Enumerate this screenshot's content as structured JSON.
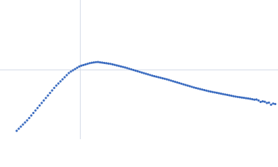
{
  "chart_data": {
    "type": "scatter",
    "x": [
      24,
      27,
      30,
      33,
      36,
      39,
      42,
      45,
      48,
      51,
      54,
      57,
      60,
      63,
      66,
      69,
      72,
      75,
      78,
      81,
      84,
      87,
      90,
      93,
      96,
      99,
      102,
      105,
      108,
      111,
      114,
      117,
      120,
      123,
      126,
      129,
      132,
      135,
      138,
      141,
      144,
      147,
      150,
      153,
      156,
      159,
      162,
      165,
      168,
      171,
      174,
      177,
      180,
      183,
      186,
      189,
      192,
      195,
      198,
      201,
      204,
      207,
      210,
      213,
      216,
      219,
      222,
      225,
      228,
      231,
      234,
      237,
      240,
      243,
      246,
      249,
      252,
      255,
      258,
      261,
      264,
      267,
      270,
      273,
      276,
      279,
      282,
      285,
      288,
      291,
      294,
      297,
      300,
      303,
      306,
      309,
      312,
      315,
      318,
      321,
      324,
      327,
      330,
      333,
      336,
      339,
      342,
      345,
      348,
      351,
      354,
      357,
      360,
      363,
      366,
      369,
      372,
      375,
      378,
      381,
      384,
      387,
      390,
      393,
      396
    ],
    "values": [
      12,
      15,
      18,
      21,
      24,
      27,
      30.4,
      34,
      37.6,
      41.2,
      44.8,
      48.4,
      52,
      55.6,
      59.2,
      62.8,
      66.4,
      70,
      73.6,
      77,
      80,
      83,
      86,
      89,
      92,
      95,
      97.2,
      99,
      100.8,
      102.6,
      104.4,
      105.6,
      106.5,
      107.4,
      108.3,
      109.2,
      109.8,
      110.3,
      110.7,
      110.9,
      110.4,
      110,
      109.5,
      109.1,
      108.6,
      108.2,
      107.5,
      106.8,
      106,
      105.3,
      104.5,
      103.8,
      103,
      102.1,
      101.2,
      100.3,
      99.4,
      98.5,
      97.6,
      96.7,
      95.8,
      94.9,
      94,
      93.1,
      92.2,
      91.3,
      90.5,
      89.8,
      89,
      88.3,
      87.5,
      86.8,
      86,
      85.1,
      84.2,
      83.3,
      82.4,
      81.5,
      80.6,
      79.7,
      78.8,
      77.9,
      77,
      76.1,
      75.2,
      74.3,
      73.5,
      72.8,
      72,
      71.3,
      70.5,
      69.8,
      69,
      68.4,
      67.8,
      67.2,
      66.6,
      66,
      65.4,
      64.8,
      64.2,
      63.6,
      63,
      62.4,
      61.8,
      61.2,
      60.7,
      60.3,
      59.8,
      59.4,
      58.9,
      58.5,
      58,
      57.4,
      56.8,
      57,
      55.6,
      53.5,
      54.4,
      53.8,
      52,
      52.5,
      49.5,
      51.2,
      50.5
    ],
    "color": "#3b6cc0",
    "xlim": [
      0,
      400
    ],
    "ylim": [
      0,
      200
    ],
    "xticks": [
      115
    ],
    "yticks": [
      100
    ],
    "grid": true
  }
}
